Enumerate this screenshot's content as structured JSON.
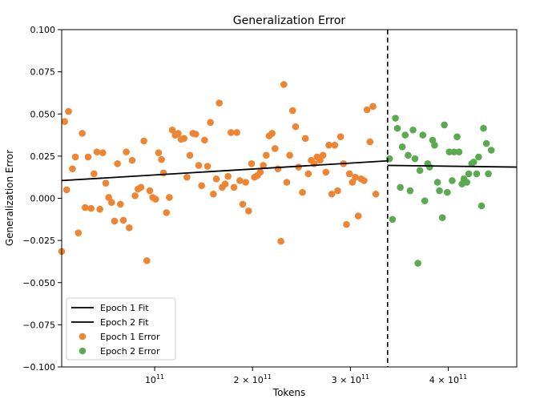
{
  "chart_data": {
    "type": "scatter",
    "title": "Generalization Error",
    "xlabel": "Tokens",
    "ylabel": "Generalization Error",
    "xlim": [
      5000000000.0,
      470000000000.0
    ],
    "ylim": [
      -0.1,
      0.1
    ],
    "x_ticks": [
      {
        "value": 100000000000.0,
        "mantissa": "",
        "exp": "11"
      },
      {
        "value": 200000000000.0,
        "mantissa": "2 × ",
        "exp": "11"
      },
      {
        "value": 300000000000.0,
        "mantissa": "3 × ",
        "exp": "11"
      },
      {
        "value": 400000000000.0,
        "mantissa": "4 × ",
        "exp": "11"
      }
    ],
    "y_ticks": [
      {
        "value": 0.1,
        "label": "0.100"
      },
      {
        "value": 0.075,
        "label": "0.075"
      },
      {
        "value": 0.05,
        "label": "0.050"
      },
      {
        "value": 0.025,
        "label": "0.025"
      },
      {
        "value": 0.0,
        "label": "0.000"
      },
      {
        "value": -0.025,
        "label": "−0.025"
      },
      {
        "value": -0.05,
        "label": "−0.050"
      },
      {
        "value": -0.075,
        "label": "−0.075"
      },
      {
        "value": -0.1,
        "label": "−0.100"
      }
    ],
    "epoch_boundary_x": 338000000000.0,
    "fit_lines": [
      {
        "name": "Epoch 1 Fit",
        "color": "#000000",
        "points": [
          [
            5000000000.0,
            0.0105
          ],
          [
            338000000000.0,
            0.0222
          ]
        ]
      },
      {
        "name": "Epoch 2 Fit",
        "color": "#000000",
        "points": [
          [
            338000000000.0,
            0.0195
          ],
          [
            470000000000.0,
            0.0185
          ]
        ]
      }
    ],
    "series": [
      {
        "name": "Epoch 1 Error",
        "color": "#ee8533",
        "points": [
          [
            5000000000.0,
            -0.0315
          ],
          [
            8000000000.0,
            0.0455
          ],
          [
            10000000000.0,
            0.005
          ],
          [
            12000000000.0,
            0.0515
          ],
          [
            16000000000.0,
            0.0175
          ],
          [
            19000000000.0,
            0.0245
          ],
          [
            22000000000.0,
            -0.0205
          ],
          [
            26000000000.0,
            0.0385
          ],
          [
            29000000000.0,
            -0.0055
          ],
          [
            32000000000.0,
            0.0245
          ],
          [
            35000000000.0,
            -0.006
          ],
          [
            38000000000.0,
            0.0145
          ],
          [
            41000000000.0,
            0.0275
          ],
          [
            44000000000.0,
            -0.0065
          ],
          [
            47000000000.0,
            0.027
          ],
          [
            50000000000.0,
            0.009
          ],
          [
            53000000000.0,
            0.0005
          ],
          [
            56000000000.0,
            -0.0025
          ],
          [
            59000000000.0,
            -0.0135
          ],
          [
            62000000000.0,
            0.0205
          ],
          [
            65000000000.0,
            -0.0035
          ],
          [
            68000000000.0,
            -0.013
          ],
          [
            71000000000.0,
            0.0275
          ],
          [
            74000000000.0,
            -0.0175
          ],
          [
            77000000000.0,
            0.0225
          ],
          [
            80000000000.0,
            0.0015
          ],
          [
            83000000000.0,
            0.0055
          ],
          [
            86000000000.0,
            0.0065
          ],
          [
            89000000000.0,
            0.034
          ],
          [
            92000000000.0,
            -0.037
          ],
          [
            95000000000.0,
            0.0045
          ],
          [
            98000000000.0,
            0.0005
          ],
          [
            101000000000.0,
            -0.0005
          ],
          [
            104000000000.0,
            0.027
          ],
          [
            107000000000.0,
            0.023
          ],
          [
            109000000000.0,
            0.015
          ],
          [
            112000000000.0,
            -0.0085
          ],
          [
            115000000000.0,
            0.0005
          ],
          [
            118000000000.0,
            0.0405
          ],
          [
            121000000000.0,
            0.0375
          ],
          [
            124000000000.0,
            0.0385
          ],
          [
            127000000000.0,
            0.035
          ],
          [
            130000000000.0,
            0.0355
          ],
          [
            133000000000.0,
            0.0125
          ],
          [
            136000000000.0,
            0.0255
          ],
          [
            139000000000.0,
            0.0385
          ],
          [
            142000000000.0,
            0.038
          ],
          [
            145000000000.0,
            0.0195
          ],
          [
            148000000000.0,
            0.0075
          ],
          [
            151000000000.0,
            0.0345
          ],
          [
            154000000000.0,
            0.019
          ],
          [
            157000000000.0,
            0.045
          ],
          [
            160000000000.0,
            0.0025
          ],
          [
            163000000000.0,
            0.0115
          ],
          [
            166000000000.0,
            0.0565
          ],
          [
            169000000000.0,
            0.0065
          ],
          [
            172000000000.0,
            0.0085
          ],
          [
            175000000000.0,
            0.013
          ],
          [
            178000000000.0,
            0.039
          ],
          [
            181000000000.0,
            0.0065
          ],
          [
            184000000000.0,
            0.039
          ],
          [
            187000000000.0,
            0.0105
          ],
          [
            190000000000.0,
            -0.0035
          ],
          [
            193000000000.0,
            0.0095
          ],
          [
            196000000000.0,
            -0.0075
          ],
          [
            199000000000.0,
            0.0205
          ],
          [
            202000000000.0,
            0.0125
          ],
          [
            205000000000.0,
            0.0135
          ],
          [
            208000000000.0,
            0.0155
          ],
          [
            211000000000.0,
            0.0195
          ],
          [
            214000000000.0,
            0.0255
          ],
          [
            217000000000.0,
            0.037
          ],
          [
            220000000000.0,
            0.0385
          ],
          [
            223000000000.0,
            0.0295
          ],
          [
            226000000000.0,
            0.0175
          ],
          [
            229000000000.0,
            -0.0255
          ],
          [
            232000000000.0,
            0.0675
          ],
          [
            235000000000.0,
            0.0095
          ],
          [
            238000000000.0,
            0.0255
          ],
          [
            241000000000.0,
            0.052
          ],
          [
            244000000000.0,
            0.0425
          ],
          [
            247000000000.0,
            0.0185
          ],
          [
            251000000000.0,
            0.0035
          ],
          [
            254000000000.0,
            0.0355
          ],
          [
            257000000000.0,
            0.0145
          ],
          [
            260000000000.0,
            0.0225
          ],
          [
            263000000000.0,
            0.0205
          ],
          [
            266000000000.0,
            0.0245
          ],
          [
            269000000000.0,
            0.0225
          ],
          [
            272000000000.0,
            0.0255
          ],
          [
            275000000000.0,
            0.0155
          ],
          [
            278000000000.0,
            0.0315
          ],
          [
            281000000000.0,
            0.0025
          ],
          [
            284000000000.0,
            0.0315
          ],
          [
            287000000000.0,
            0.0045
          ],
          [
            290000000000.0,
            0.0365
          ],
          [
            293000000000.0,
            0.0205
          ],
          [
            296000000000.0,
            -0.0155
          ],
          [
            299000000000.0,
            0.0145
          ],
          [
            302000000000.0,
            0.0095
          ],
          [
            305000000000.0,
            0.0125
          ],
          [
            308000000000.0,
            -0.0105
          ],
          [
            311000000000.0,
            0.0115
          ],
          [
            314000000000.0,
            0.0105
          ],
          [
            317000000000.0,
            0.0525
          ],
          [
            320000000000.0,
            0.0335
          ],
          [
            323000000000.0,
            0.0545
          ],
          [
            326000000000.0,
            0.0025
          ]
        ]
      },
      {
        "name": "Epoch 2 Error",
        "color": "#5ba951",
        "points": [
          [
            340000000000.0,
            0.0235
          ],
          [
            343000000000.0,
            -0.0125
          ],
          [
            346000000000.0,
            0.0475
          ],
          [
            348000000000.0,
            0.0415
          ],
          [
            351000000000.0,
            0.0065
          ],
          [
            353000000000.0,
            0.0305
          ],
          [
            356000000000.0,
            0.0375
          ],
          [
            359000000000.0,
            0.0255
          ],
          [
            361000000000.0,
            0.0045
          ],
          [
            364000000000.0,
            0.0405
          ],
          [
            366000000000.0,
            0.0235
          ],
          [
            369000000000.0,
            -0.0385
          ],
          [
            371000000000.0,
            0.0165
          ],
          [
            374000000000.0,
            0.0375
          ],
          [
            376000000000.0,
            -0.0015
          ],
          [
            379000000000.0,
            0.0205
          ],
          [
            381000000000.0,
            0.0185
          ],
          [
            384000000000.0,
            0.0345
          ],
          [
            386000000000.0,
            0.0315
          ],
          [
            389000000000.0,
            0.0095
          ],
          [
            391000000000.0,
            0.0045
          ],
          [
            394000000000.0,
            -0.0115
          ],
          [
            396000000000.0,
            0.0435
          ],
          [
            399000000000.0,
            0.0035
          ],
          [
            401000000000.0,
            0.0275
          ],
          [
            404000000000.0,
            0.0105
          ],
          [
            406000000000.0,
            0.0275
          ],
          [
            409000000000.0,
            0.0365
          ],
          [
            411000000000.0,
            0.0275
          ],
          [
            414000000000.0,
            0.0085
          ],
          [
            416000000000.0,
            0.0115
          ],
          [
            419000000000.0,
            0.0095
          ],
          [
            421000000000.0,
            0.0145
          ],
          [
            424000000000.0,
            0.0205
          ],
          [
            426000000000.0,
            0.0215
          ],
          [
            429000000000.0,
            0.0145
          ],
          [
            431000000000.0,
            0.0245
          ],
          [
            434000000000.0,
            -0.0045
          ],
          [
            436000000000.0,
            0.0415
          ],
          [
            439000000000.0,
            0.0325
          ],
          [
            441000000000.0,
            0.0145
          ],
          [
            444000000000.0,
            0.0285
          ]
        ]
      }
    ],
    "legend": {
      "placement": "lower-left",
      "entries": [
        {
          "label": "Epoch 1 Fit",
          "kind": "line",
          "color": "#000000"
        },
        {
          "label": "Epoch 2 Fit",
          "kind": "line",
          "color": "#000000"
        },
        {
          "label": "Epoch 1 Error",
          "kind": "marker",
          "color": "#ee8533"
        },
        {
          "label": "Epoch 2 Error",
          "kind": "marker",
          "color": "#5ba951"
        }
      ]
    },
    "grid": false
  }
}
